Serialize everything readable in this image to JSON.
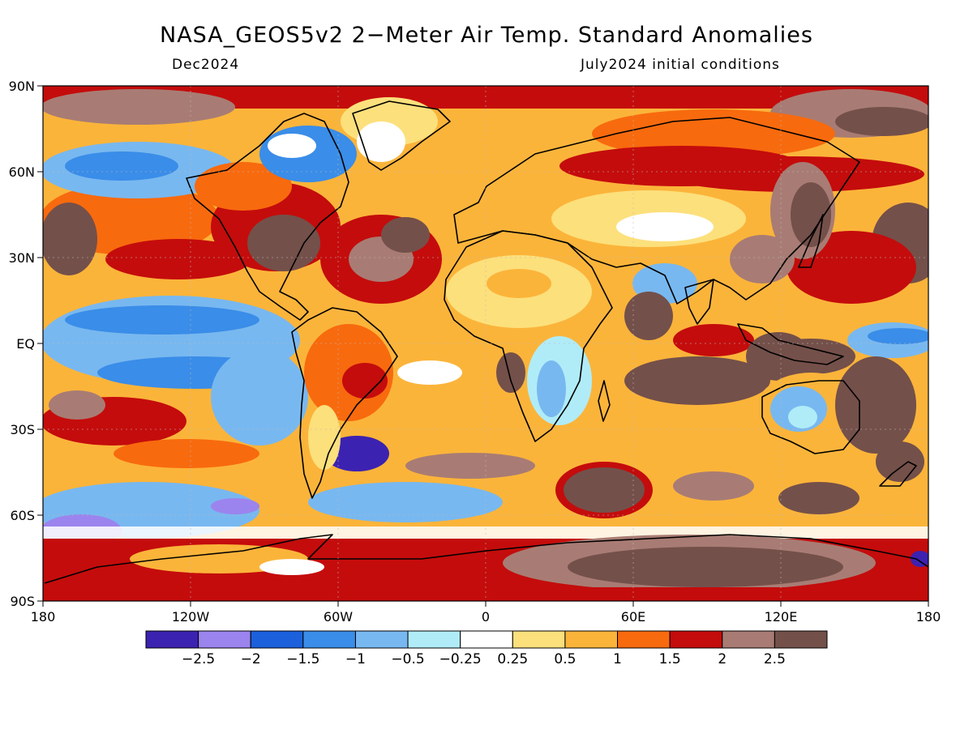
{
  "header": {
    "title": "NASA_GEOS5v2 2−Meter Air Temp. Standard Anomalies",
    "valid_month": "Dec2024",
    "initial_conditions": "July2024 initial conditions"
  },
  "map": {
    "projection": "cylindrical equidistant",
    "lat_labels": [
      "90N",
      "60N",
      "30N",
      "EQ",
      "30S",
      "60S",
      "90S"
    ],
    "lon_labels": [
      "180",
      "120W",
      "60W",
      "0",
      "60E",
      "120E",
      "180"
    ]
  },
  "colorbar": {
    "bins": [
      {
        "color": "#3c22b0"
      },
      {
        "color": "#9b84ee"
      },
      {
        "color": "#1c60dc"
      },
      {
        "color": "#3a8de8"
      },
      {
        "color": "#78b8f0"
      },
      {
        "color": "#b0ecf8"
      },
      {
        "color": "#ffffff"
      },
      {
        "color": "#fce07c"
      },
      {
        "color": "#fbb43a"
      },
      {
        "color": "#f86a0e"
      },
      {
        "color": "#c40c0c"
      },
      {
        "color": "#a87c74"
      },
      {
        "color": "#74504a"
      }
    ],
    "labels": [
      "−2.5",
      "−2",
      "−1.5",
      "−1",
      "−0.5",
      "−0.25",
      "0.25",
      "0.5",
      "1",
      "1.5",
      "2",
      "2.5"
    ]
  },
  "palette": {
    "ocean_cold": "#78b8f0",
    "land_warm": "#fbb43a",
    "extreme_warm": "#74504a",
    "coastline": "#000000"
  }
}
